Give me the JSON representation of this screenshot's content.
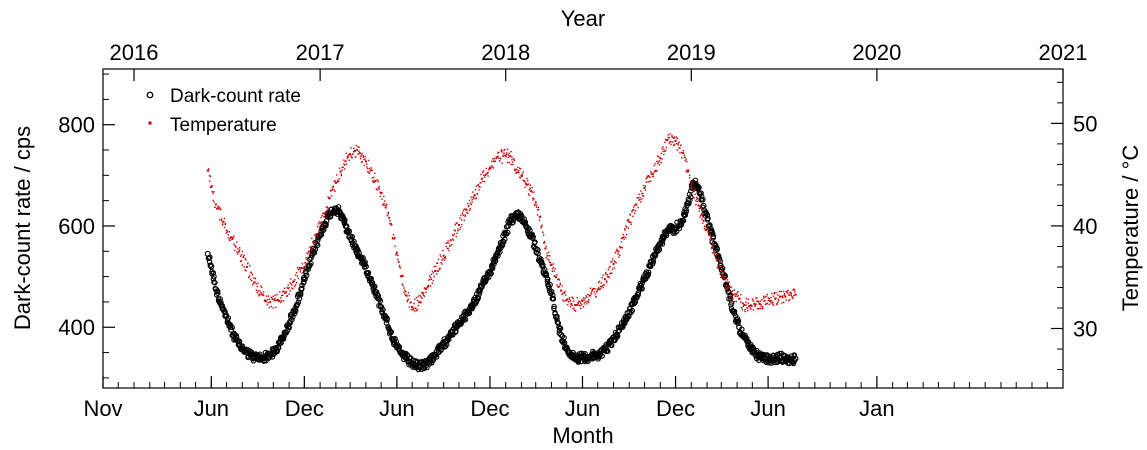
{
  "chart_data": {
    "type": "scatter",
    "title": "",
    "x_axis": {
      "label": "Month",
      "range": [
        "2015-11-01",
        "2021-01-01"
      ],
      "tick_labels": [
        {
          "value": "2015-11-01",
          "text": "Nov"
        },
        {
          "value": "2016-06-01",
          "text": "Jun"
        },
        {
          "value": "2016-12-01",
          "text": "Dec"
        },
        {
          "value": "2017-06-01",
          "text": "Jun"
        },
        {
          "value": "2017-12-01",
          "text": "Dec"
        },
        {
          "value": "2018-06-01",
          "text": "Jun"
        },
        {
          "value": "2018-12-01",
          "text": "Dec"
        },
        {
          "value": "2019-06-01",
          "text": "Jun"
        },
        {
          "value": "2020-01-01",
          "text": "Jan"
        }
      ]
    },
    "x2_axis": {
      "label": "Year",
      "tick_labels": [
        "2016",
        "2017",
        "2018",
        "2019",
        "2020",
        "2021"
      ]
    },
    "y_axis": {
      "label": "Dark-count rate / cps",
      "range": [
        280,
        910
      ],
      "tick_labels": [
        "400",
        "600",
        "800"
      ]
    },
    "y2_axis": {
      "label": "Temperature / °C",
      "range": [
        24.2,
        55.3
      ],
      "tick_labels": [
        "30",
        "40",
        "50"
      ]
    },
    "legend": {
      "position": "top-left",
      "entries": [
        "Dark-count rate",
        "Temperature"
      ]
    },
    "series": [
      {
        "name": "Dark-count rate",
        "axis": "left",
        "color": "#000000",
        "marker": "open-circle",
        "x": [
          "2016-05-25",
          "2016-06-01",
          "2016-06-10",
          "2016-06-25",
          "2016-07-10",
          "2016-07-25",
          "2016-08-10",
          "2016-08-25",
          "2016-09-10",
          "2016-09-25",
          "2016-10-10",
          "2016-10-25",
          "2016-11-10",
          "2016-11-25",
          "2016-12-10",
          "2016-12-25",
          "2017-01-10",
          "2017-01-20",
          "2017-02-01",
          "2017-02-10",
          "2017-02-20",
          "2017-03-01",
          "2017-03-10",
          "2017-03-20",
          "2017-04-01",
          "2017-04-10",
          "2017-04-20",
          "2017-05-01",
          "2017-05-10",
          "2017-05-20",
          "2017-06-01",
          "2017-06-10",
          "2017-06-20",
          "2017-07-01",
          "2017-07-15",
          "2017-08-01",
          "2017-08-15",
          "2017-09-01",
          "2017-09-15",
          "2017-10-01",
          "2017-10-15",
          "2017-11-01",
          "2017-11-15",
          "2017-12-01",
          "2017-12-15",
          "2018-01-01",
          "2018-01-10",
          "2018-01-20",
          "2018-02-01",
          "2018-02-10",
          "2018-02-20",
          "2018-03-01",
          "2018-03-10",
          "2018-03-20",
          "2018-04-01",
          "2018-04-10",
          "2018-04-20",
          "2018-05-01",
          "2018-05-10",
          "2018-05-20",
          "2018-06-01",
          "2018-06-15",
          "2018-07-01",
          "2018-07-15",
          "2018-08-01",
          "2018-08-15",
          "2018-09-01",
          "2018-09-15",
          "2018-10-01",
          "2018-10-15",
          "2018-11-01",
          "2018-11-15",
          "2018-12-01",
          "2018-12-15",
          "2018-12-25",
          "2019-01-05",
          "2019-01-15",
          "2019-01-25",
          "2019-02-05",
          "2019-02-15",
          "2019-02-25",
          "2019-03-05",
          "2019-03-15",
          "2019-03-25",
          "2019-04-05",
          "2019-04-15",
          "2019-04-25",
          "2019-05-05",
          "2019-05-15",
          "2019-05-25",
          "2019-06-05",
          "2019-06-15",
          "2019-06-25",
          "2019-07-05",
          "2019-07-15",
          "2019-07-25"
        ],
        "y": [
          545,
          520,
          475,
          435,
          395,
          365,
          350,
          340,
          340,
          345,
          360,
          390,
          430,
          475,
          520,
          565,
          605,
          625,
          635,
          625,
          600,
          580,
          560,
          540,
          520,
          495,
          470,
          440,
          420,
          390,
          360,
          348,
          338,
          328,
          322,
          330,
          345,
          365,
          390,
          405,
          425,
          450,
          480,
          510,
          545,
          585,
          610,
          620,
          620,
          600,
          580,
          555,
          530,
          505,
          470,
          420,
          385,
          360,
          345,
          340,
          340,
          342,
          345,
          355,
          375,
          400,
          430,
          460,
          495,
          530,
          565,
          590,
          595,
          610,
          645,
          685,
          675,
          640,
          600,
          565,
          535,
          505,
          470,
          430,
          400,
          380,
          360,
          350,
          342,
          338,
          335,
          338,
          340,
          338,
          335,
          338
        ]
      },
      {
        "name": "Temperature",
        "axis": "right",
        "color": "#cc0000",
        "marker": "dot",
        "x": [
          "2016-05-25",
          "2016-06-01",
          "2016-06-10",
          "2016-06-25",
          "2016-07-10",
          "2016-07-25",
          "2016-08-10",
          "2016-08-25",
          "2016-09-10",
          "2016-09-25",
          "2016-10-10",
          "2016-10-25",
          "2016-11-10",
          "2016-11-25",
          "2016-12-10",
          "2016-12-25",
          "2017-01-10",
          "2017-01-20",
          "2017-02-01",
          "2017-02-10",
          "2017-02-20",
          "2017-03-01",
          "2017-03-10",
          "2017-03-20",
          "2017-04-01",
          "2017-04-10",
          "2017-04-20",
          "2017-05-01",
          "2017-05-10",
          "2017-05-20",
          "2017-06-01",
          "2017-06-10",
          "2017-06-20",
          "2017-07-01",
          "2017-07-15",
          "2017-08-01",
          "2017-08-15",
          "2017-09-01",
          "2017-09-15",
          "2017-10-01",
          "2017-10-15",
          "2017-11-01",
          "2017-11-15",
          "2017-12-01",
          "2017-12-15",
          "2018-01-01",
          "2018-01-10",
          "2018-01-20",
          "2018-02-01",
          "2018-02-10",
          "2018-02-20",
          "2018-03-01",
          "2018-03-10",
          "2018-03-20",
          "2018-04-01",
          "2018-04-10",
          "2018-04-20",
          "2018-05-01",
          "2018-05-10",
          "2018-05-20",
          "2018-06-01",
          "2018-06-15",
          "2018-07-01",
          "2018-07-15",
          "2018-08-01",
          "2018-08-15",
          "2018-09-01",
          "2018-09-15",
          "2018-10-01",
          "2018-10-15",
          "2018-11-01",
          "2018-11-15",
          "2018-12-01",
          "2018-12-15",
          "2018-12-25",
          "2019-01-05",
          "2019-01-15",
          "2019-01-25",
          "2019-02-05",
          "2019-02-15",
          "2019-02-25",
          "2019-03-05",
          "2019-03-15",
          "2019-03-25",
          "2019-04-05",
          "2019-04-15",
          "2019-04-25",
          "2019-05-05",
          "2019-05-15",
          "2019-05-25",
          "2019-06-05",
          "2019-06-15",
          "2019-06-25",
          "2019-07-05",
          "2019-07-15",
          "2019-07-25"
        ],
        "y": [
          45.4,
          43.8,
          42.1,
          40.4,
          38.9,
          37.5,
          36.0,
          34.5,
          33.3,
          32.6,
          32.8,
          33.5,
          34.6,
          35.9,
          37.5,
          39.2,
          41.2,
          42.7,
          44.2,
          45.3,
          46.3,
          47.0,
          47.3,
          47.1,
          46.3,
          45.4,
          44.4,
          43.2,
          41.8,
          40.2,
          37.4,
          35.1,
          33.2,
          32.1,
          32.6,
          34.1,
          35.6,
          37.1,
          38.6,
          40.1,
          41.6,
          43.0,
          44.6,
          45.7,
          46.7,
          46.8,
          46.8,
          45.5,
          44.9,
          44.1,
          43.4,
          42.3,
          40.9,
          37.8,
          36.2,
          35.0,
          33.7,
          32.8,
          32.4,
          32.3,
          32.7,
          33.2,
          33.8,
          34.8,
          36.3,
          37.9,
          40.4,
          42.1,
          43.7,
          45.1,
          46.6,
          48.4,
          48.3,
          47.1,
          45.3,
          43.4,
          42.0,
          40.5,
          39.1,
          37.4,
          36.1,
          35.0,
          34.0,
          33.3,
          32.9,
          32.3,
          32.2,
          32.4,
          32.4,
          32.7,
          32.7,
          32.9,
          33.1,
          33.1,
          33.5,
          33.3
        ]
      }
    ]
  }
}
